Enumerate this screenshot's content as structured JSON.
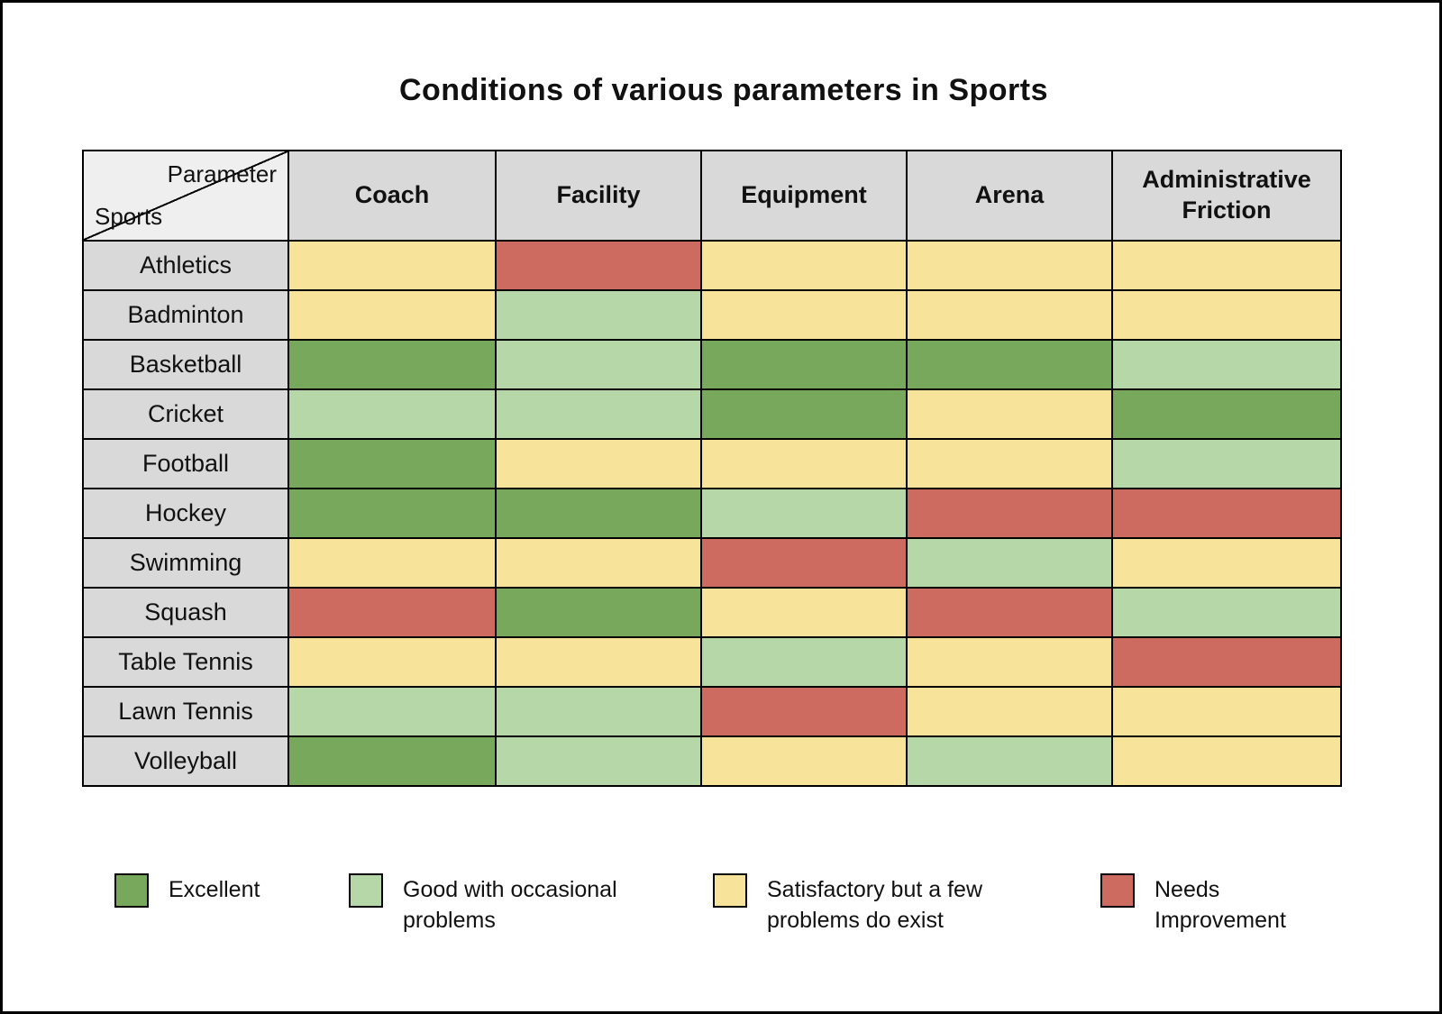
{
  "title": "Conditions of various parameters in Sports",
  "colors": {
    "excellent": "#78A85C",
    "good": "#B6D7A8",
    "satisfactory": "#F8E39B",
    "needs_improvement": "#CE6B61",
    "header_bg": "#D9D9D9",
    "corner_bg": "#EFEFEF",
    "border": "#000000"
  },
  "table": {
    "corner": {
      "top_label": "Parameter",
      "bottom_label": "Sports"
    },
    "columns": [
      "Coach",
      "Facility",
      "Equipment",
      "Arena",
      "Administrative Friction"
    ],
    "rows": [
      {
        "label": "Athletics",
        "cells": [
          "satisfactory",
          "needs_improvement",
          "satisfactory",
          "satisfactory",
          "satisfactory"
        ]
      },
      {
        "label": "Badminton",
        "cells": [
          "satisfactory",
          "good",
          "satisfactory",
          "satisfactory",
          "satisfactory"
        ]
      },
      {
        "label": "Basketball",
        "cells": [
          "excellent",
          "good",
          "excellent",
          "excellent",
          "good"
        ]
      },
      {
        "label": "Cricket",
        "cells": [
          "good",
          "good",
          "excellent",
          "satisfactory",
          "excellent"
        ]
      },
      {
        "label": "Football",
        "cells": [
          "excellent",
          "satisfactory",
          "satisfactory",
          "satisfactory",
          "good"
        ]
      },
      {
        "label": "Hockey",
        "cells": [
          "excellent",
          "excellent",
          "good",
          "needs_improvement",
          "needs_improvement"
        ]
      },
      {
        "label": "Swimming",
        "cells": [
          "satisfactory",
          "satisfactory",
          "needs_improvement",
          "good",
          "satisfactory"
        ]
      },
      {
        "label": "Squash",
        "cells": [
          "needs_improvement",
          "excellent",
          "satisfactory",
          "needs_improvement",
          "good"
        ]
      },
      {
        "label": "Table Tennis",
        "cells": [
          "satisfactory",
          "satisfactory",
          "good",
          "satisfactory",
          "needs_improvement"
        ]
      },
      {
        "label": "Lawn Tennis",
        "cells": [
          "good",
          "good",
          "needs_improvement",
          "satisfactory",
          "satisfactory"
        ]
      },
      {
        "label": "Volleyball",
        "cells": [
          "excellent",
          "good",
          "satisfactory",
          "good",
          "satisfactory"
        ]
      }
    ]
  },
  "legend": {
    "items": [
      {
        "key": "excellent",
        "label": "Excellent"
      },
      {
        "key": "good",
        "label": "Good with occasional problems"
      },
      {
        "key": "satisfactory",
        "label": "Satisfactory but a few problems do exist"
      },
      {
        "key": "needs_improvement",
        "label": "Needs Improvement"
      }
    ]
  },
  "chart_data": {
    "type": "heatmap",
    "title": "Conditions of various parameters in Sports",
    "x_categories": [
      "Coach",
      "Facility",
      "Equipment",
      "Arena",
      "Administrative Friction"
    ],
    "y_categories": [
      "Athletics",
      "Badminton",
      "Basketball",
      "Cricket",
      "Football",
      "Hockey",
      "Swimming",
      "Squash",
      "Table Tennis",
      "Lawn Tennis",
      "Volleyball"
    ],
    "values": [
      [
        "satisfactory",
        "needs_improvement",
        "satisfactory",
        "satisfactory",
        "satisfactory"
      ],
      [
        "satisfactory",
        "good",
        "satisfactory",
        "satisfactory",
        "satisfactory"
      ],
      [
        "excellent",
        "good",
        "excellent",
        "excellent",
        "good"
      ],
      [
        "good",
        "good",
        "excellent",
        "satisfactory",
        "excellent"
      ],
      [
        "excellent",
        "satisfactory",
        "satisfactory",
        "satisfactory",
        "good"
      ],
      [
        "excellent",
        "excellent",
        "good",
        "needs_improvement",
        "needs_improvement"
      ],
      [
        "satisfactory",
        "satisfactory",
        "needs_improvement",
        "good",
        "satisfactory"
      ],
      [
        "needs_improvement",
        "excellent",
        "satisfactory",
        "needs_improvement",
        "good"
      ],
      [
        "satisfactory",
        "satisfactory",
        "good",
        "satisfactory",
        "needs_improvement"
      ],
      [
        "good",
        "good",
        "needs_improvement",
        "satisfactory",
        "satisfactory"
      ],
      [
        "excellent",
        "good",
        "satisfactory",
        "good",
        "satisfactory"
      ]
    ],
    "value_legend": {
      "excellent": "Excellent",
      "good": "Good with occasional problems",
      "satisfactory": "Satisfactory but a few problems do exist",
      "needs_improvement": "Needs Improvement"
    },
    "legend_position": "bottom",
    "grid": true
  }
}
